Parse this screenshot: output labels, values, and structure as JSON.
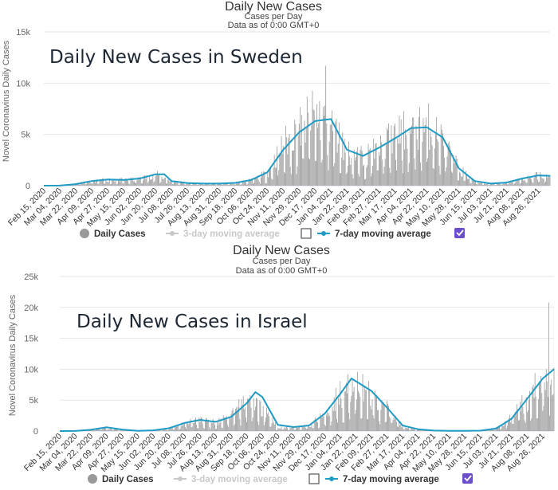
{
  "chart_data": [
    {
      "type": "bar",
      "title": "Daily New Cases",
      "subtitle": "Cases per Day",
      "subtitle2": "Data as of 0:00 GMT+0",
      "overlay_title": "Daily New Cases in Sweden",
      "ylabel": "Novel Coronavirus Daily Cases",
      "ylim": [
        0,
        15000
      ],
      "yticks": [
        0,
        5000,
        10000,
        15000
      ],
      "ytick_labels": [
        "0",
        "5k",
        "10k",
        "15k"
      ],
      "x_start": "2020-02-15",
      "x_end": "2021-09-08",
      "xtick_labels": [
        "Feb 15, 2020",
        "Mar 04, 2020",
        "Mar 22, 2020",
        "Apr 09, 2020",
        "Apr 27, 2020",
        "May 15, 2020",
        "Jun 02, 2020",
        "Jun 20, 2020",
        "Jul 08, 2020",
        "Jul 26, 2020",
        "Aug 13, 2020",
        "Aug 31, 2020",
        "Sep 18, 2020",
        "Oct 06, 2020",
        "Oct 24, 2020",
        "Nov 11, 2020",
        "Nov 29, 2020",
        "Dec 17, 2020",
        "Jan 04, 2021",
        "Jan 22, 2021",
        "Feb 09, 2021",
        "Feb 27, 2021",
        "Mar 17, 2021",
        "Apr 04, 2021",
        "Apr 22, 2021",
        "May 10, 2021",
        "May 28, 2021",
        "Jun 15, 2021",
        "Jul 03, 2021",
        "Jul 21, 2021",
        "Aug 08, 2021",
        "Aug 26, 2021"
      ],
      "series": [
        {
          "name": "Daily Cases",
          "kind": "bar",
          "color": "#999999",
          "points": [
            [
              "2020-02-15",
              0
            ],
            [
              "2020-03-04",
              5
            ],
            [
              "2020-03-22",
              200
            ],
            [
              "2020-04-09",
              450
            ],
            [
              "2020-04-27",
              600
            ],
            [
              "2020-05-15",
              580
            ],
            [
              "2020-06-02",
              700
            ],
            [
              "2020-06-20",
              1200
            ],
            [
              "2020-07-08",
              500
            ],
            [
              "2020-07-26",
              250
            ],
            [
              "2020-08-13",
              200
            ],
            [
              "2020-08-31",
              200
            ],
            [
              "2020-09-18",
              300
            ],
            [
              "2020-10-06",
              550
            ],
            [
              "2020-10-24",
              1300
            ],
            [
              "2020-11-11",
              4300
            ],
            [
              "2020-11-29",
              6000
            ],
            [
              "2020-12-17",
              7500
            ],
            [
              "2021-01-04",
              6500
            ],
            [
              "2021-01-22",
              3500
            ],
            [
              "2021-02-09",
              3000
            ],
            [
              "2021-02-27",
              3800
            ],
            [
              "2021-03-17",
              5500
            ],
            [
              "2021-04-04",
              5800
            ],
            [
              "2021-04-22",
              6500
            ],
            [
              "2021-05-10",
              4800
            ],
            [
              "2021-05-28",
              1800
            ],
            [
              "2021-06-15",
              400
            ],
            [
              "2021-07-03",
              200
            ],
            [
              "2021-07-21",
              300
            ],
            [
              "2021-08-08",
              700
            ],
            [
              "2021-08-26",
              1100
            ],
            [
              "2021-09-08",
              900
            ]
          ]
        },
        {
          "name": "3-day moving average",
          "kind": "line",
          "color": "#c8c8c8",
          "enabled": false
        },
        {
          "name": "7-day moving average",
          "kind": "line",
          "color": "#1f9bc4",
          "enabled": true,
          "points": [
            [
              "2020-02-15",
              0
            ],
            [
              "2020-03-04",
              10
            ],
            [
              "2020-03-22",
              150
            ],
            [
              "2020-04-09",
              450
            ],
            [
              "2020-04-27",
              600
            ],
            [
              "2020-05-15",
              550
            ],
            [
              "2020-06-02",
              700
            ],
            [
              "2020-06-20",
              1100
            ],
            [
              "2020-06-30",
              1100
            ],
            [
              "2020-07-08",
              450
            ],
            [
              "2020-07-26",
              250
            ],
            [
              "2020-08-13",
              200
            ],
            [
              "2020-08-31",
              200
            ],
            [
              "2020-09-18",
              270
            ],
            [
              "2020-10-06",
              550
            ],
            [
              "2020-10-24",
              1300
            ],
            [
              "2020-11-11",
              3500
            ],
            [
              "2020-11-29",
              5200
            ],
            [
              "2020-12-17",
              6300
            ],
            [
              "2021-01-04",
              6500
            ],
            [
              "2021-01-22",
              3500
            ],
            [
              "2021-02-09",
              2900
            ],
            [
              "2021-02-27",
              3700
            ],
            [
              "2021-03-17",
              4600
            ],
            [
              "2021-04-04",
              5600
            ],
            [
              "2021-04-22",
              5700
            ],
            [
              "2021-05-10",
              4700
            ],
            [
              "2021-05-28",
              1700
            ],
            [
              "2021-06-15",
              450
            ],
            [
              "2021-07-03",
              200
            ],
            [
              "2021-07-21",
              300
            ],
            [
              "2021-08-08",
              700
            ],
            [
              "2021-08-26",
              1000
            ],
            [
              "2021-09-08",
              950
            ]
          ]
        }
      ],
      "legend": [
        {
          "label": "Daily Cases",
          "marker": "circle",
          "color": "#999999",
          "muted": false
        },
        {
          "label": "3-day moving average",
          "marker": "line",
          "color": "#c8c8c8",
          "muted": true,
          "checkbox": "unchecked"
        },
        {
          "label": "7-day moving average",
          "marker": "line",
          "color": "#1f9bc4",
          "muted": false,
          "checkbox": "checked"
        }
      ],
      "legend_placement": "bottom",
      "grid": true
    },
    {
      "type": "bar",
      "title": "Daily New Cases",
      "subtitle": "Cases per Day",
      "subtitle2": "Data as of 0:00 GMT+0",
      "overlay_title": "Daily New Cases in Israel",
      "ylabel": "Novel Coronavirus Daily Cases",
      "ylim": [
        0,
        25000
      ],
      "yticks": [
        0,
        5000,
        10000,
        15000,
        20000,
        25000
      ],
      "ytick_labels": [
        "0",
        "5k",
        "10k",
        "15k",
        "20k",
        "25k"
      ],
      "x_start": "2020-02-15",
      "x_end": "2021-09-08",
      "xtick_labels": [
        "Feb 15, 2020",
        "Mar 04, 2020",
        "Mar 22, 2020",
        "Apr 09, 2020",
        "Apr 27, 2020",
        "May 15, 2020",
        "Jun 02, 2020",
        "Jun 20, 2020",
        "Jul 08, 2020",
        "Jul 26, 2020",
        "Aug 13, 2020",
        "Aug 31, 2020",
        "Sep 18, 2020",
        "Oct 06, 2020",
        "Oct 24, 2020",
        "Nov 11, 2020",
        "Nov 29, 2020",
        "Dec 17, 2020",
        "Jan 04, 2021",
        "Jan 22, 2021",
        "Feb 09, 2021",
        "Feb 27, 2021",
        "Mar 17, 2021",
        "Apr 04, 2021",
        "Apr 22, 2021",
        "May 10, 2021",
        "May 28, 2021",
        "Jun 15, 2021",
        "Jul 03, 2021",
        "Jul 21, 2021",
        "Aug 08, 2021",
        "Aug 26, 2021"
      ],
      "series": [
        {
          "name": "Daily Cases",
          "kind": "bar",
          "color": "#999999",
          "points": [
            [
              "2020-02-15",
              0
            ],
            [
              "2020-03-04",
              10
            ],
            [
              "2020-03-22",
              300
            ],
            [
              "2020-04-09",
              550
            ],
            [
              "2020-04-27",
              150
            ],
            [
              "2020-05-15",
              30
            ],
            [
              "2020-06-02",
              150
            ],
            [
              "2020-06-20",
              400
            ],
            [
              "2020-07-08",
              1500
            ],
            [
              "2020-07-26",
              1900
            ],
            [
              "2020-08-13",
              1500
            ],
            [
              "2020-08-31",
              2500
            ],
            [
              "2020-09-18",
              5800
            ],
            [
              "2020-10-06",
              4000
            ],
            [
              "2020-10-24",
              600
            ],
            [
              "2020-11-11",
              700
            ],
            [
              "2020-11-29",
              900
            ],
            [
              "2020-12-17",
              3000
            ],
            [
              "2021-01-04",
              6500
            ],
            [
              "2021-01-22",
              8000
            ],
            [
              "2021-02-09",
              6000
            ],
            [
              "2021-02-27",
              4000
            ],
            [
              "2021-03-17",
              900
            ],
            [
              "2021-04-04",
              250
            ],
            [
              "2021-04-22",
              80
            ],
            [
              "2021-05-10",
              30
            ],
            [
              "2021-05-28",
              20
            ],
            [
              "2021-06-15",
              60
            ],
            [
              "2021-07-03",
              500
            ],
            [
              "2021-07-21",
              2500
            ],
            [
              "2021-08-08",
              5500
            ],
            [
              "2021-08-26",
              9000
            ],
            [
              "2021-09-08",
              10000
            ]
          ]
        },
        {
          "name": "3-day moving average",
          "kind": "line",
          "color": "#c8c8c8",
          "enabled": false
        },
        {
          "name": "7-day moving average",
          "kind": "line",
          "color": "#1f9bc4",
          "enabled": true,
          "points": [
            [
              "2020-02-15",
              0
            ],
            [
              "2020-03-04",
              10
            ],
            [
              "2020-03-22",
              200
            ],
            [
              "2020-04-09",
              600
            ],
            [
              "2020-04-27",
              250
            ],
            [
              "2020-05-15",
              30
            ],
            [
              "2020-06-02",
              120
            ],
            [
              "2020-06-20",
              450
            ],
            [
              "2020-07-08",
              1300
            ],
            [
              "2020-07-26",
              1800
            ],
            [
              "2020-08-13",
              1500
            ],
            [
              "2020-08-31",
              2300
            ],
            [
              "2020-09-18",
              4500
            ],
            [
              "2020-09-28",
              6300
            ],
            [
              "2020-10-06",
              5500
            ],
            [
              "2020-10-24",
              1000
            ],
            [
              "2020-11-11",
              650
            ],
            [
              "2020-11-29",
              900
            ],
            [
              "2020-12-17",
              2800
            ],
            [
              "2021-01-04",
              6000
            ],
            [
              "2021-01-17",
              8500
            ],
            [
              "2021-02-09",
              6500
            ],
            [
              "2021-02-27",
              3800
            ],
            [
              "2021-03-17",
              900
            ],
            [
              "2021-04-04",
              300
            ],
            [
              "2021-04-22",
              80
            ],
            [
              "2021-05-10",
              30
            ],
            [
              "2021-05-28",
              20
            ],
            [
              "2021-06-15",
              60
            ],
            [
              "2021-07-03",
              400
            ],
            [
              "2021-07-21",
              2000
            ],
            [
              "2021-08-08",
              5200
            ],
            [
              "2021-08-26",
              8500
            ],
            [
              "2021-09-08",
              10000
            ]
          ]
        }
      ],
      "legend": [
        {
          "label": "Daily Cases",
          "marker": "circle",
          "color": "#999999",
          "muted": false
        },
        {
          "label": "3-day moving average",
          "marker": "line",
          "color": "#c8c8c8",
          "muted": true,
          "checkbox": "unchecked"
        },
        {
          "label": "7-day moving average",
          "marker": "line",
          "color": "#1f9bc4",
          "muted": false,
          "checkbox": "checked"
        }
      ],
      "legend_placement": "bottom",
      "grid": true
    }
  ]
}
